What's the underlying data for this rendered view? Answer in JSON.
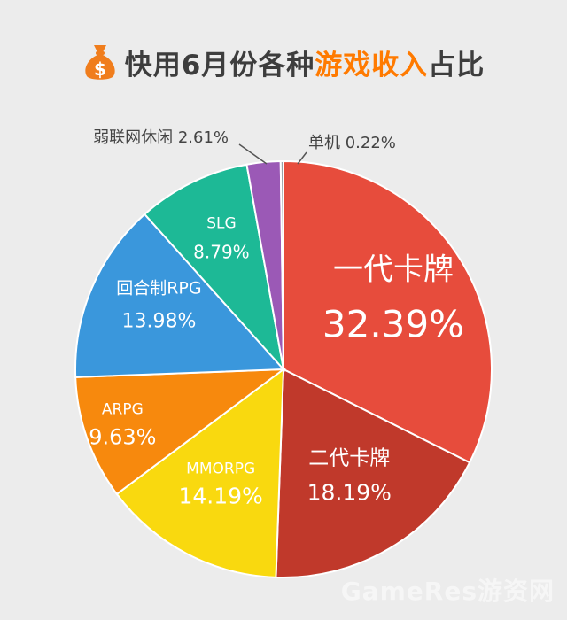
{
  "title": {
    "part1": "快用6月份各种",
    "highlight": "游戏收入",
    "part2": "占比"
  },
  "watermark": "GameRes游资网",
  "colors": {
    "title_text": "#3d3d3d",
    "title_highlight": "#ff7a00",
    "icon_bag": "#f07d1c",
    "background": "#ececec"
  },
  "chart_data": {
    "type": "pie",
    "title": "快用6月份各种游戏收入占比",
    "slices": [
      {
        "label": "一代卡牌",
        "value": 32.39,
        "value_label": "32.39%",
        "color": "#e74c3c"
      },
      {
        "label": "二代卡牌",
        "value": 18.19,
        "value_label": "18.19%",
        "color": "#c0392b"
      },
      {
        "label": "MMORPG",
        "value": 14.19,
        "value_label": "14.19%",
        "color": "#f9d90f"
      },
      {
        "label": "ARPG",
        "value": 9.63,
        "value_label": "9.63%",
        "color": "#f7890d"
      },
      {
        "label": "回合制RPG",
        "value": 13.98,
        "value_label": "13.98%",
        "color": "#3a97dc"
      },
      {
        "label": "SLG",
        "value": 8.79,
        "value_label": "8.79%",
        "color": "#1db996"
      },
      {
        "label": "弱联网休闲",
        "value": 2.61,
        "value_label": "2.61%",
        "color": "#9b59b6"
      },
      {
        "label": "单机",
        "value": 0.22,
        "value_label": "0.22%",
        "color": "#9aa3a6"
      }
    ]
  }
}
